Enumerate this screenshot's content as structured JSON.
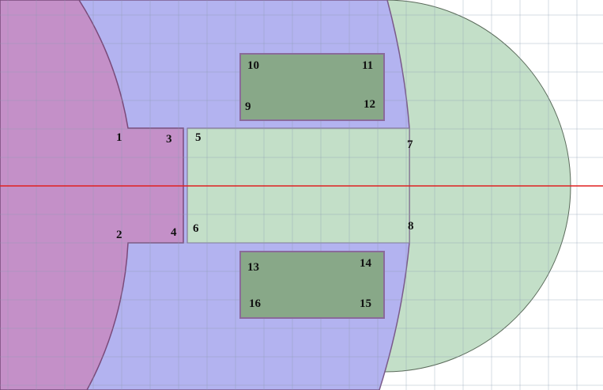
{
  "labels": [
    "1",
    "2",
    "3",
    "4",
    "5",
    "6",
    "7",
    "8",
    "9",
    "10",
    "11",
    "12",
    "13",
    "14",
    "15",
    "16"
  ]
}
